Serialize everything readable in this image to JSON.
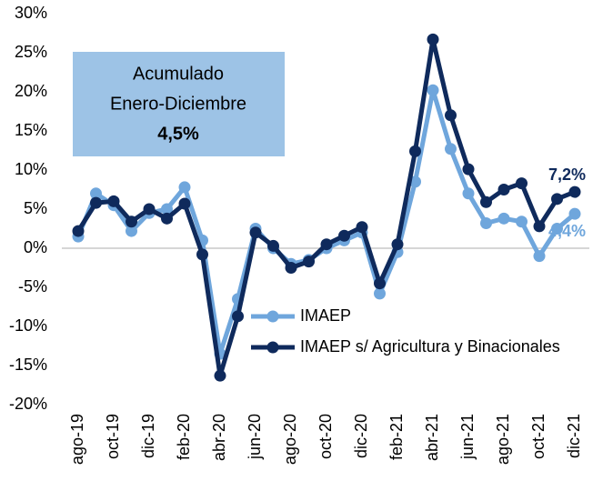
{
  "chart_data": {
    "type": "line",
    "annotation": {
      "lines": [
        "Acumulado",
        "Enero-Diciembre",
        "4,5%"
      ],
      "color": "#9dc3e6"
    },
    "categories": [
      "ago-19",
      null,
      "oct-19",
      null,
      "dic-19",
      null,
      "feb-20",
      null,
      "abr-20",
      null,
      "jun-20",
      null,
      "ago-20",
      null,
      "oct-20",
      null,
      "dic-20",
      null,
      "feb-21",
      null,
      "abr-21",
      null,
      "jun-21",
      null,
      "ago-21",
      null,
      "oct-21",
      null,
      "dic-21"
    ],
    "series": [
      {
        "name": "IMAEP",
        "color": "#6fa6dc",
        "values": [
          1.5,
          7.0,
          5.5,
          2.2,
          4.5,
          5.0,
          7.8,
          1.0,
          -13.5,
          -6.5,
          2.5,
          0.0,
          -2.0,
          -1.5,
          0.0,
          1.0,
          2.0,
          -5.8,
          -0.5,
          8.5,
          20.2,
          12.7,
          7.0,
          3.2,
          3.8,
          3.4,
          -1.0,
          2.5,
          4.4
        ],
        "value_labels": [
          null,
          null,
          null,
          null,
          null,
          null,
          null,
          null,
          null,
          null,
          null,
          null,
          null,
          null,
          null,
          null,
          null,
          null,
          null,
          null,
          null,
          null,
          null,
          null,
          null,
          null,
          null,
          null,
          "4,4%"
        ]
      },
      {
        "name": "IMAEP s/ Agricultura y Binacionales",
        "color": "#0f2a5c",
        "values": [
          2.2,
          5.8,
          6.0,
          3.4,
          5.0,
          3.8,
          5.7,
          -0.8,
          -16.3,
          -8.7,
          2.0,
          0.3,
          -2.5,
          -1.7,
          0.5,
          1.6,
          2.7,
          -4.5,
          0.5,
          12.4,
          26.7,
          17.0,
          10.1,
          5.9,
          7.5,
          8.3,
          2.8,
          6.3,
          7.2
        ],
        "value_labels": [
          null,
          null,
          null,
          null,
          null,
          null,
          null,
          null,
          null,
          null,
          null,
          null,
          null,
          null,
          null,
          null,
          null,
          null,
          null,
          null,
          null,
          null,
          null,
          null,
          null,
          null,
          null,
          null,
          "7,2%"
        ]
      }
    ],
    "ylim": [
      -20,
      30
    ],
    "yticks": [
      {
        "value": -20,
        "label": "-20%"
      },
      {
        "value": -15,
        "label": "-15%"
      },
      {
        "value": -10,
        "label": "-10%"
      },
      {
        "value": -5,
        "label": "-5%"
      },
      {
        "value": 0,
        "label": "0%"
      },
      {
        "value": 5,
        "label": "5%"
      },
      {
        "value": 10,
        "label": "10%"
      },
      {
        "value": 15,
        "label": "15%"
      },
      {
        "value": 20,
        "label": "20%"
      },
      {
        "value": 25,
        "label": "25%"
      },
      {
        "value": 30,
        "label": "30%"
      }
    ]
  }
}
